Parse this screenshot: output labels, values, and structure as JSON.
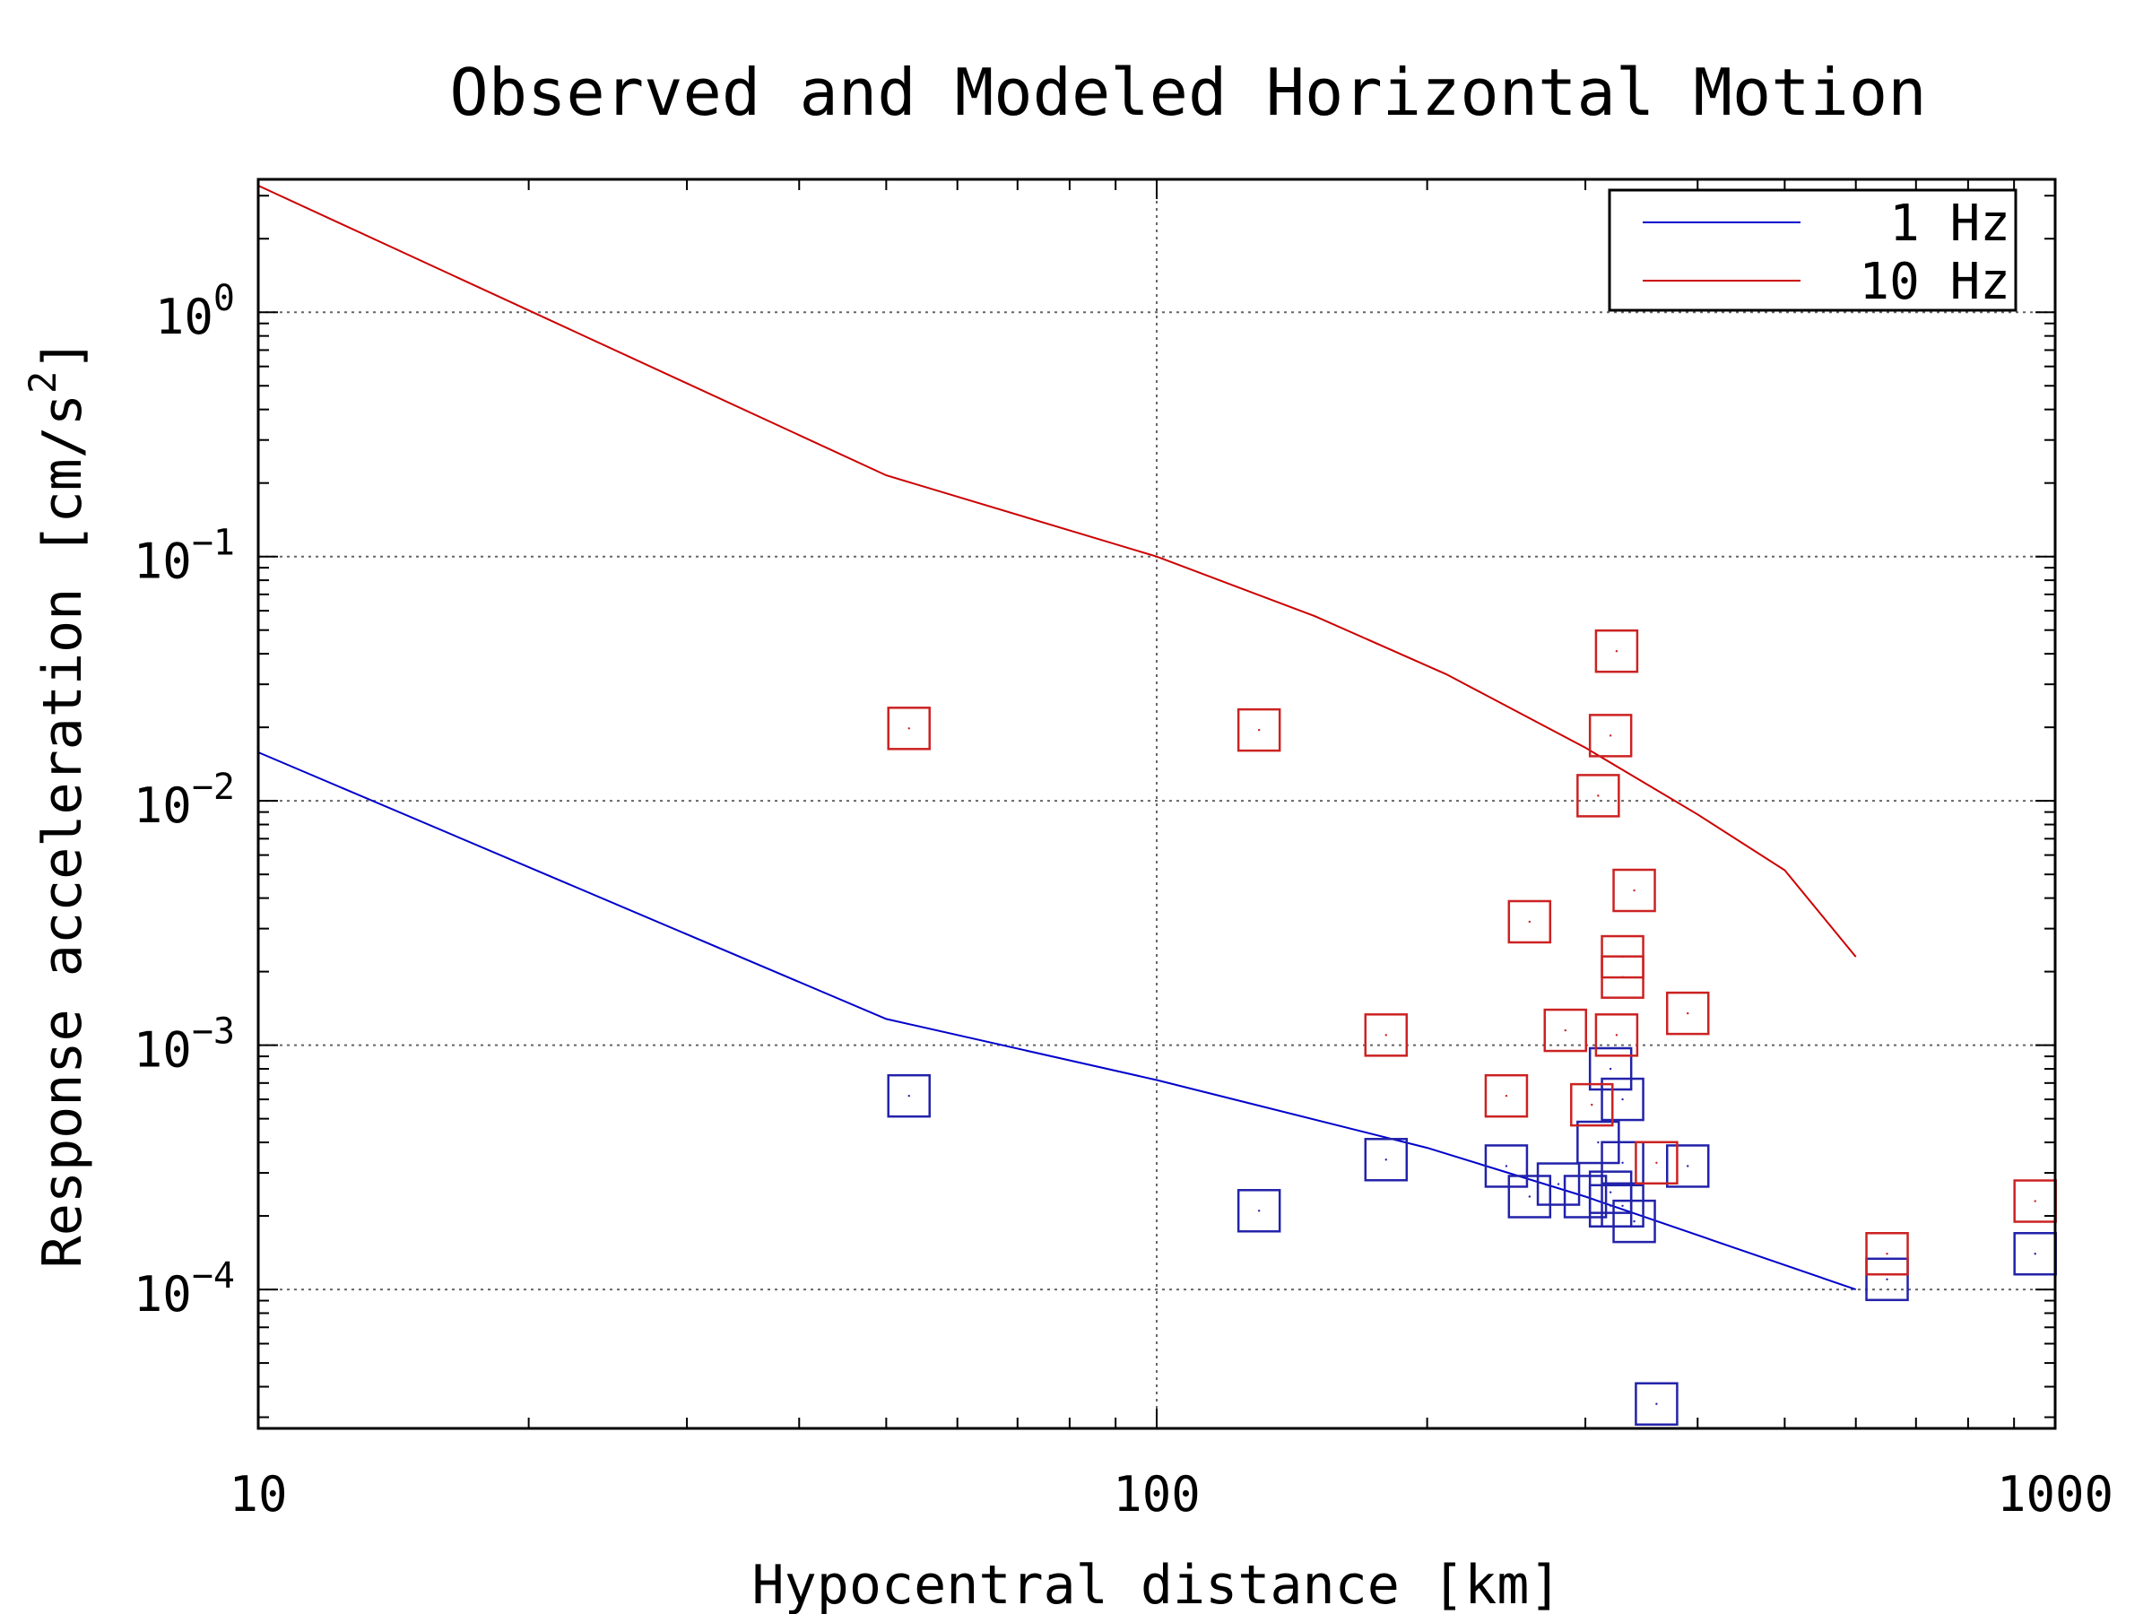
{
  "chart_data": {
    "type": "scatter",
    "title": "Observed and Modeled Horizontal Motion",
    "xlabel": "Hypocentral distance [km]",
    "ylabel": "Response acceleration [cm/s",
    "ylabel_sup": "2",
    "ylabel_end": "]",
    "xscale": "log",
    "yscale": "log",
    "xlim": [
      10,
      1000
    ],
    "ylim": [
      2.7e-05,
      3.5
    ],
    "x_ticks": [
      {
        "value": 10,
        "label": "10"
      },
      {
        "value": 100,
        "label": "100"
      },
      {
        "value": 1000,
        "label": "1000"
      }
    ],
    "y_ticks": [
      {
        "value": 0.0001,
        "base": "10",
        "exp": "−4"
      },
      {
        "value": 0.001,
        "base": "10",
        "exp": "−3"
      },
      {
        "value": 0.01,
        "base": "10",
        "exp": "−2"
      },
      {
        "value": 0.1,
        "base": "10",
        "exp": "−1"
      },
      {
        "value": 1,
        "base": "10",
        "exp": "0"
      }
    ],
    "grid": true,
    "legend_position": "top-right",
    "lines": [
      {
        "name": "1 Hz",
        "color": "#0000cc",
        "points": [
          [
            10,
            0.0158
          ],
          [
            50,
            0.00128
          ],
          [
            100,
            0.00072
          ],
          [
            200,
            0.00038
          ],
          [
            300,
            0.00024
          ],
          [
            600,
            0.0001
          ]
        ]
      },
      {
        "name": "10 Hz",
        "color": "#cc0000",
        "points": [
          [
            10,
            3.3
          ],
          [
            50,
            0.215
          ],
          [
            100,
            0.1
          ],
          [
            150,
            0.057
          ],
          [
            210,
            0.033
          ],
          [
            300,
            0.0165
          ],
          [
            400,
            0.0088
          ],
          [
            500,
            0.0052
          ],
          [
            600,
            0.0023
          ]
        ]
      }
    ],
    "scatter": [
      {
        "series": "1 Hz",
        "color": "#2222aa",
        "points": [
          [
            53,
            0.00062
          ],
          [
            130,
            0.00021
          ],
          [
            180,
            0.00034
          ],
          [
            245,
            0.00032
          ],
          [
            260,
            0.00024
          ],
          [
            280,
            0.00027
          ],
          [
            300,
            0.00024
          ],
          [
            310,
            0.0004
          ],
          [
            320,
            0.0008
          ],
          [
            320,
            0.00025
          ],
          [
            320,
            0.00022
          ],
          [
            330,
            0.0006
          ],
          [
            330,
            0.00033
          ],
          [
            330,
            0.00022
          ],
          [
            340,
            0.00019
          ],
          [
            360,
            3.4e-05
          ],
          [
            390,
            0.00032
          ],
          [
            650,
            0.00011
          ],
          [
            950,
            0.00014
          ]
        ]
      },
      {
        "series": "10 Hz",
        "color": "#cc2222",
        "points": [
          [
            53,
            0.0198
          ],
          [
            130,
            0.0195
          ],
          [
            180,
            0.0011
          ],
          [
            245,
            0.00062
          ],
          [
            260,
            0.0032
          ],
          [
            285,
            0.00115
          ],
          [
            305,
            0.00057
          ],
          [
            310,
            0.0105
          ],
          [
            320,
            0.0185
          ],
          [
            325,
            0.041
          ],
          [
            325,
            0.0011
          ],
          [
            330,
            0.0023
          ],
          [
            330,
            0.0019
          ],
          [
            340,
            0.0043
          ],
          [
            360,
            0.00033
          ],
          [
            390,
            0.00135
          ],
          [
            650,
            0.00014
          ],
          [
            950,
            0.00023
          ]
        ]
      }
    ]
  }
}
